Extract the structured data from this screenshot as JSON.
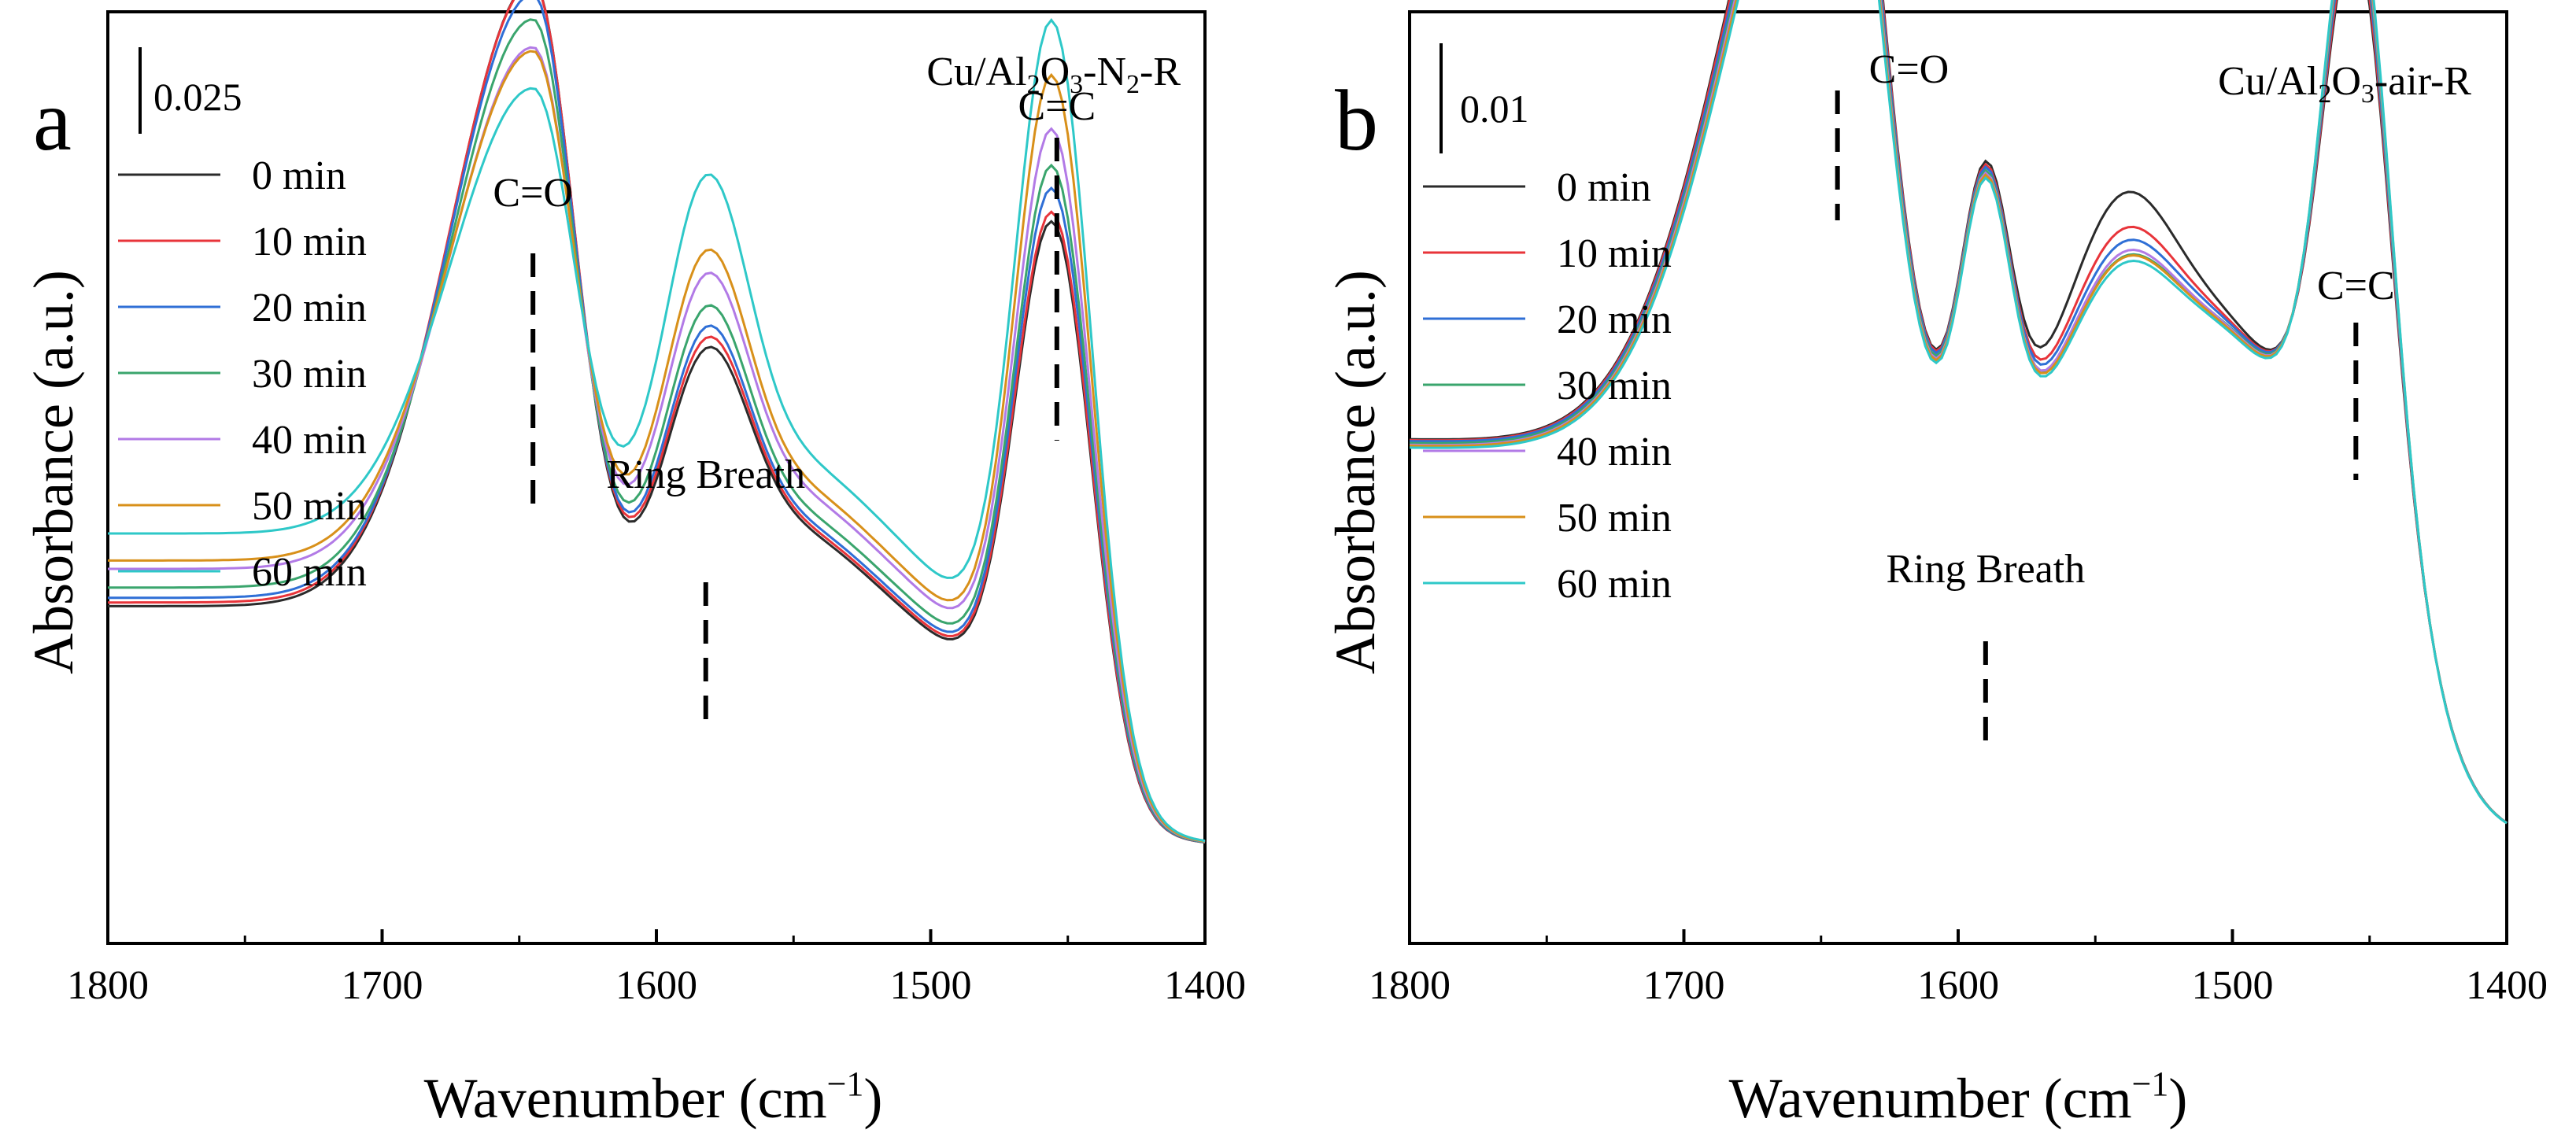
{
  "chart_data": [
    {
      "type": "line",
      "panel_label": "a",
      "title": "Cu/Al2O3-N2-R",
      "title_parts": {
        "base": "Cu/Al",
        "sub1": "2",
        "mid": "O",
        "sub2": "3",
        "tail": "-N",
        "sub3": "2",
        "end": "-R"
      },
      "xlabel": "Wavenumber (cm",
      "xlabel_sup": "−1",
      "xlabel_close": ")",
      "ylabel": "Absorbance (a.u.)",
      "xlim": [
        1800,
        1400
      ],
      "ylim": [
        0,
        1
      ],
      "xticks": [
        "1800",
        "1700",
        "1600",
        "1500",
        "1400"
      ],
      "scale_bar_label": "0.025",
      "annotations": [
        {
          "text": "C=O",
          "x": 1645
        },
        {
          "text": "Ring Breath",
          "x": 1582
        },
        {
          "text": "C=C",
          "x": 1454
        }
      ],
      "series": [
        {
          "name": "0 min",
          "color": "#2b2b2b",
          "peak1": 0.773,
          "ring": 0.242,
          "peak2": 0.592,
          "tail": 0.259
        },
        {
          "name": "10 min",
          "color": "#e8343a",
          "peak1": 0.768,
          "ring": 0.249,
          "peak2": 0.601,
          "tail": 0.263
        },
        {
          "name": "20 min",
          "color": "#2f6fd6",
          "peak1": 0.751,
          "ring": 0.256,
          "peak2": 0.625,
          "tail": 0.268
        },
        {
          "name": "30 min",
          "color": "#3aa56d",
          "peak1": 0.713,
          "ring": 0.267,
          "peak2": 0.646,
          "tail": 0.279
        },
        {
          "name": "40 min",
          "color": "#b27ae6",
          "peak1": 0.663,
          "ring": 0.282,
          "peak2": 0.679,
          "tail": 0.299
        },
        {
          "name": "50 min",
          "color": "#d8901a",
          "peak1": 0.65,
          "ring": 0.298,
          "peak2": 0.734,
          "tail": 0.308
        },
        {
          "name": "60 min",
          "color": "#2ec8c8",
          "peak1": 0.581,
          "ring": 0.35,
          "peak2": 0.784,
          "tail": 0.337
        }
      ]
    },
    {
      "type": "line",
      "panel_label": "b",
      "title": "Cu/Al2O3-air-R",
      "title_parts": {
        "base": "Cu/Al",
        "sub1": "2",
        "mid": "O",
        "sub2": "3",
        "tail": "-air-R"
      },
      "xlabel": "Wavenumber (cm",
      "xlabel_sup": "−1",
      "xlabel_close": ")",
      "ylabel": "Absorbance (a.u.)",
      "xlim": [
        1800,
        1400
      ],
      "ylim": [
        0,
        1
      ],
      "xticks": [
        "1800",
        "1700",
        "1600",
        "1500",
        "1400"
      ],
      "scale_bar_label": "0.01",
      "annotations": [
        {
          "text": "C=O",
          "x": 1644
        },
        {
          "text": "Ring Breath",
          "x": 1590
        },
        {
          "text": "C=C",
          "x": 1455
        }
      ],
      "series": [
        {
          "name": "0 min",
          "color": "#2b2b2b",
          "peak1": 0.942,
          "ring": 0.295,
          "mid": 0.262,
          "peak2": 0.575,
          "tail": 0.411
        },
        {
          "name": "10 min",
          "color": "#e8343a",
          "peak1": 0.936,
          "ring": 0.294,
          "mid": 0.225,
          "peak2": 0.585,
          "tail": 0.41
        },
        {
          "name": "20 min",
          "color": "#2f6fd6",
          "peak1": 0.925,
          "ring": 0.293,
          "mid": 0.212,
          "peak2": 0.598,
          "tail": 0.409
        },
        {
          "name": "30 min",
          "color": "#3aa56d",
          "peak1": 0.913,
          "ring": 0.292,
          "mid": 0.198,
          "peak2": 0.611,
          "tail": 0.407
        },
        {
          "name": "40 min",
          "color": "#b27ae6",
          "peak1": 0.905,
          "ring": 0.291,
          "mid": 0.205,
          "peak2": 0.622,
          "tail": 0.405
        },
        {
          "name": "50 min",
          "color": "#d8901a",
          "peak1": 0.896,
          "ring": 0.29,
          "mid": 0.2,
          "peak2": 0.63,
          "tail": 0.404
        },
        {
          "name": "60 min",
          "color": "#2ec8c8",
          "peak1": 0.887,
          "ring": 0.289,
          "mid": 0.196,
          "peak2": 0.637,
          "tail": 0.402
        }
      ]
    }
  ]
}
